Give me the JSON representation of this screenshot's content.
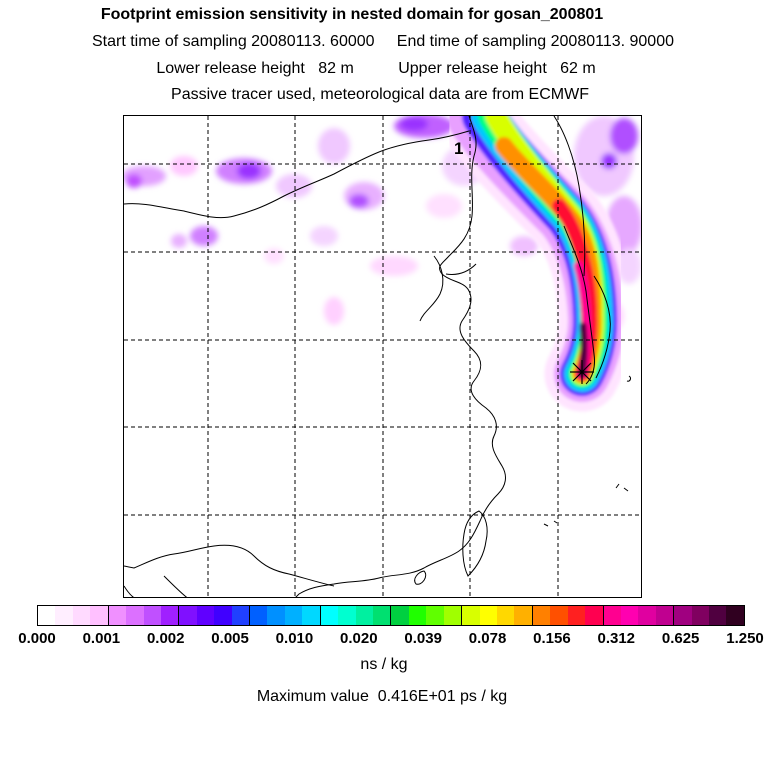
{
  "header": {
    "title": "Footprint emission sensitivity in nested domain for gosan_200801",
    "sampling_line": "Start time of sampling 20080113. 60000     End time of sampling 20080113. 90000",
    "height_line": "Lower release height   82 m          Upper release height   62 m",
    "tracer_line": "Passive tracer used, meteorological data are from ECMWF"
  },
  "map": {
    "panel_label": "1",
    "receptor_icon": "star-burst-icon",
    "grid": "dashed",
    "plume_colors": [
      "#ffc8ff",
      "#c77dff",
      "#7b00ff",
      "#0066ff",
      "#00ffff",
      "#00ff66",
      "#ffff00",
      "#ff0000",
      "#ff0080",
      "#400040"
    ]
  },
  "colorbar": {
    "swatches": [
      "#ffffff",
      "#ffeeff",
      "#ffdaff",
      "#ffc0ff",
      "#f090ff",
      "#dc70ff",
      "#c050ff",
      "#a020ff",
      "#8010ff",
      "#6000ff",
      "#4000ff",
      "#2040ff",
      "#0060ff",
      "#0090ff",
      "#00b0ff",
      "#00d8ff",
      "#00ffff",
      "#00ffd0",
      "#00f0a0",
      "#00e070",
      "#00d040",
      "#20ff00",
      "#60ff00",
      "#a0ff00",
      "#d8ff00",
      "#ffff00",
      "#ffd800",
      "#ffb000",
      "#ff8000",
      "#ff5000",
      "#ff2020",
      "#ff0050",
      "#ff0090",
      "#ff00b0",
      "#e000a0",
      "#c00090",
      "#a00080",
      "#800060",
      "#500040",
      "#300020"
    ],
    "labels": [
      "0.000",
      "0.001",
      "0.002",
      "0.005",
      "0.010",
      "0.020",
      "0.039",
      "0.078",
      "0.156",
      "0.312",
      "0.625",
      "1.250"
    ],
    "unit": "ns / kg"
  },
  "max_value_line": "Maximum value  0.416E+01 ps / kg"
}
